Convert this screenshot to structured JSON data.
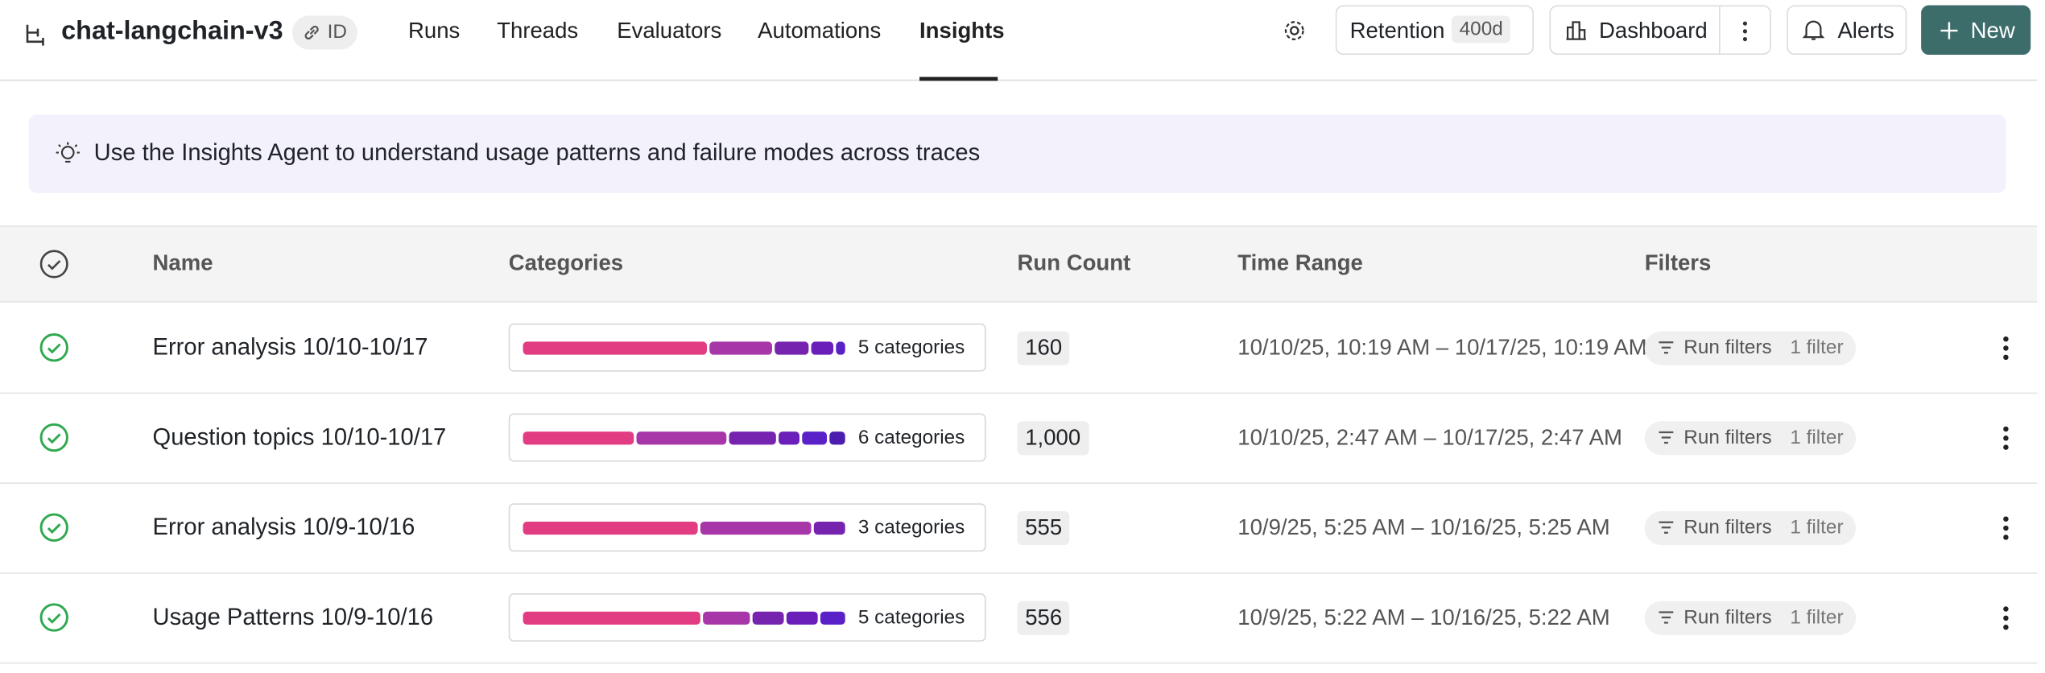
{
  "header": {
    "project": "chat-langchain-v3",
    "id_badge": "ID",
    "tabs": [
      "Runs",
      "Threads",
      "Evaluators",
      "Automations",
      "Insights"
    ],
    "active_tab": 4,
    "retention_label": "Retention",
    "retention_value": "400d",
    "dashboard": "Dashboard",
    "alerts": "Alerts",
    "new": "New"
  },
  "banner": {
    "text": "Use the Insights Agent to understand usage patterns and failure modes across traces"
  },
  "table": {
    "columns": [
      "Name",
      "Categories",
      "Run Count",
      "Time Range",
      "Filters"
    ],
    "segment_colors": [
      "#e23c82",
      "#a737a8",
      "#7624b0",
      "#6a1fba",
      "#5a21c9",
      "#4b1eb0"
    ],
    "rows": [
      {
        "name": "Error analysis 10/10-10/17",
        "category_shares": [
          59,
          20,
          11,
          7,
          3
        ],
        "categories_label": "5 categories",
        "run_count": "160",
        "time_range": "10/10/25, 10:19 AM – 10/17/25, 10:19 AM",
        "filter_label": "Run filters",
        "filter_count": "1 filter"
      },
      {
        "name": "Question topics 10/10-10/17",
        "category_shares": [
          36,
          29,
          15,
          7,
          8,
          5
        ],
        "categories_label": "6 categories",
        "run_count": "1,000",
        "time_range": "10/10/25, 2:47 AM – 10/17/25, 2:47 AM",
        "filter_label": "Run filters",
        "filter_count": "1 filter"
      },
      {
        "name": "Error analysis 10/9-10/16",
        "category_shares": [
          55,
          35,
          10
        ],
        "categories_label": "3 categories",
        "run_count": "555",
        "time_range": "10/9/25, 5:25 AM – 10/16/25, 5:25 AM",
        "filter_label": "Run filters",
        "filter_count": "1 filter"
      },
      {
        "name": "Usage Patterns 10/9-10/16",
        "category_shares": [
          57,
          15,
          10,
          10,
          8
        ],
        "categories_label": "5 categories",
        "run_count": "556",
        "time_range": "10/9/25, 5:22 AM – 10/16/25, 5:22 AM",
        "filter_label": "Run filters",
        "filter_count": "1 filter"
      }
    ]
  }
}
